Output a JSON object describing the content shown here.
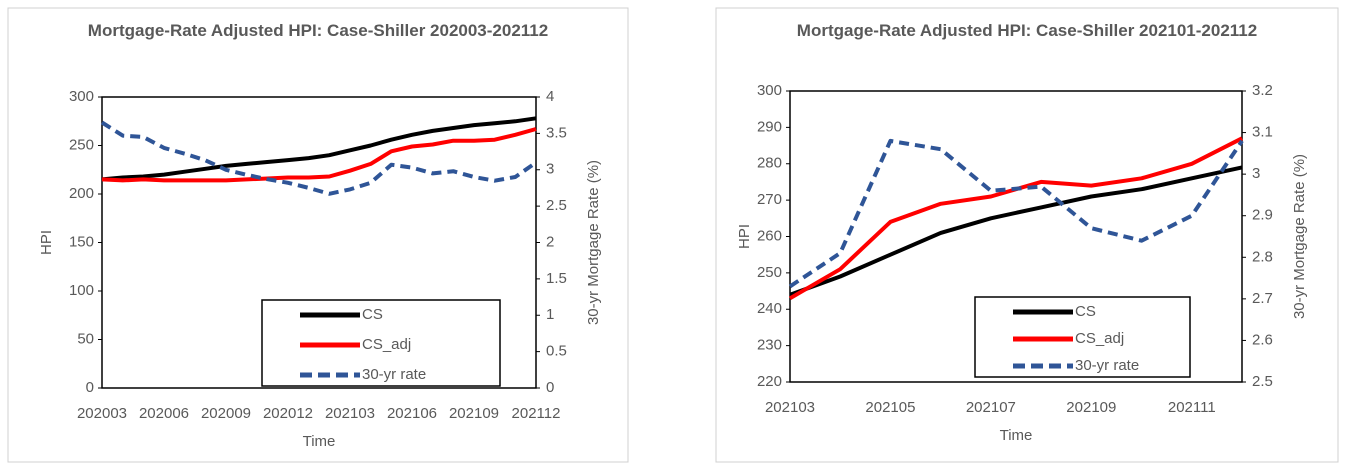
{
  "chart_data": [
    {
      "type": "line",
      "title": "Mortgage-Rate Adjusted HPI: Case-Shiller 202003-202112",
      "x_label": "Time",
      "y_label": "HPI",
      "y2_label": "30-yr Mortgage Rate (%)",
      "categories": [
        "202003",
        null,
        null,
        "202006",
        null,
        null,
        "202009",
        null,
        null,
        "202012",
        null,
        null,
        "202103",
        null,
        null,
        "202106",
        null,
        null,
        "202109",
        null,
        null,
        "202112"
      ],
      "ylim": [
        0,
        300
      ],
      "yticks": [
        0,
        50,
        100,
        150,
        200,
        250,
        300
      ],
      "y2lim": [
        0,
        4
      ],
      "y2ticks": [
        0,
        0.5,
        1,
        1.5,
        2,
        2.5,
        3,
        3.5,
        4
      ],
      "series": [
        {
          "name": "CS",
          "color": "#000000",
          "values": [
            215,
            217,
            218,
            220,
            223,
            226,
            229,
            231,
            233,
            235,
            237,
            240,
            245,
            250,
            256,
            261,
            265,
            268,
            271,
            273,
            275,
            278
          ]
        },
        {
          "name": "CS_adj",
          "color": "#ff0000",
          "values": [
            215,
            214,
            215,
            214,
            214,
            214,
            214,
            215,
            216,
            217,
            217,
            218,
            224,
            231,
            244,
            249,
            251,
            255,
            255,
            256,
            261,
            267
          ]
        },
        {
          "name": "30-yr rate",
          "color": "#2f5597",
          "dashed": true,
          "axis": "y2",
          "values": [
            3.65,
            3.47,
            3.45,
            3.3,
            3.22,
            3.13,
            3.0,
            2.93,
            2.87,
            2.82,
            2.75,
            2.67,
            2.73,
            2.82,
            3.07,
            3.03,
            2.95,
            2.98,
            2.9,
            2.85,
            2.9,
            3.1
          ]
        }
      ]
    },
    {
      "type": "line",
      "title": "Mortgage-Rate Adjusted HPI: Case-Shiller 202101-202112",
      "x_label": "Time",
      "y_label": "HPI",
      "y2_label": "30-yr Mortgage Rate (%)",
      "categories": [
        "202103",
        null,
        "202105",
        null,
        "202107",
        null,
        "202109",
        null,
        "202111",
        null
      ],
      "ylim": [
        220,
        300
      ],
      "yticks": [
        220,
        230,
        240,
        250,
        260,
        270,
        280,
        290,
        300
      ],
      "y2lim": [
        2.5,
        3.2
      ],
      "y2ticks": [
        2.5,
        2.6,
        2.7,
        2.8,
        2.9,
        3,
        3.1,
        3.2
      ],
      "series": [
        {
          "name": "CS",
          "color": "#000000",
          "values": [
            244,
            249,
            255,
            261,
            265,
            268,
            271,
            273,
            276,
            279
          ]
        },
        {
          "name": "CS_adj",
          "color": "#ff0000",
          "values": [
            243,
            251,
            264,
            269,
            271,
            275,
            274,
            276,
            280,
            287
          ]
        },
        {
          "name": "30-yr rate",
          "color": "#2f5597",
          "dashed": true,
          "axis": "y2",
          "values": [
            2.73,
            2.81,
            3.08,
            3.06,
            2.96,
            2.97,
            2.87,
            2.84,
            2.9,
            3.08
          ]
        }
      ]
    }
  ]
}
